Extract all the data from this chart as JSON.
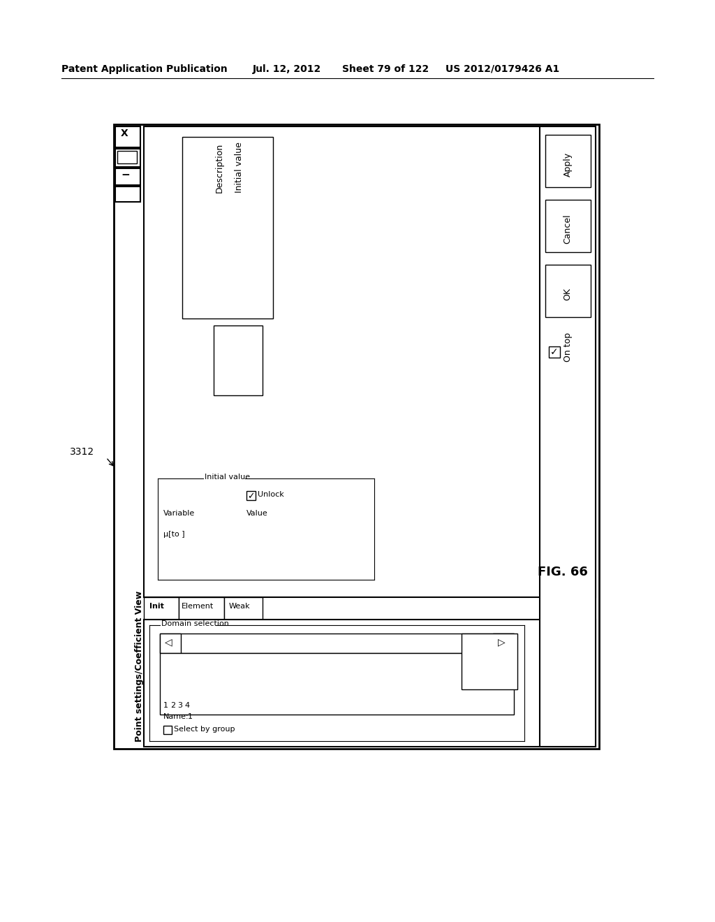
{
  "header_text": "Patent Application Publication",
  "header_date": "Jul. 12, 2012",
  "header_sheet": "Sheet 79 of 122",
  "header_patent": "US 2012/0179426 A1",
  "fig_label": "FIG. 66",
  "ref_number": "3312",
  "title": "Point settings/Coefficient View",
  "tab_labels": [
    "Init",
    "Element",
    "Weak"
  ],
  "domain_selection_label": "Domain selection",
  "numbers": [
    "1",
    "2",
    "3",
    "4"
  ],
  "nav_left": "◁",
  "nav_right": "▷",
  "name_label": "Name:",
  "name_value": "1",
  "select_by_group": "Select by group",
  "initial_value_label": "Initial value",
  "unlock_label": "Unlock",
  "variable_label": "Variable",
  "value_label": "Value",
  "mu_label": "μ[to ]",
  "description_label": "Description",
  "initial_value2": "Initial value",
  "button_apply": "Apply",
  "button_cancel": "Cancel",
  "button_ok": "OK",
  "on_top_label": "On top",
  "bg_color": "#ffffff",
  "border_color": "#000000"
}
